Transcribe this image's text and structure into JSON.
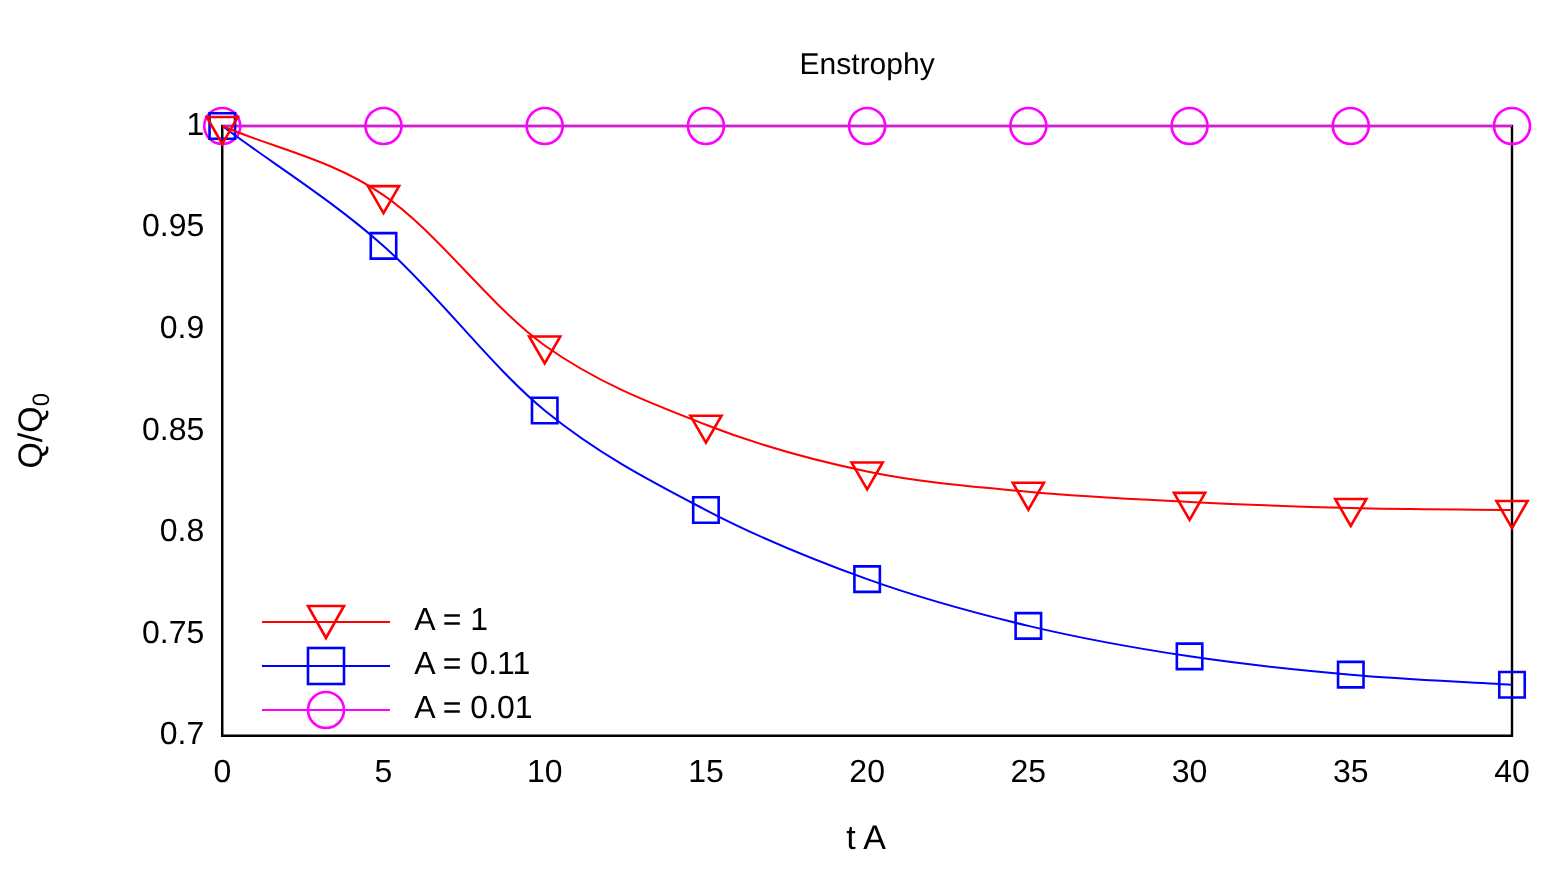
{
  "chart_data": {
    "type": "line",
    "title": "Enstrophy",
    "xlabel": "t A",
    "ylabel": "Q/Q$_{0}$",
    "x": [
      0,
      5,
      10,
      15,
      20,
      25,
      30,
      35,
      40
    ],
    "series": [
      {
        "name": "A = 1",
        "color": "#ff0000",
        "marker": "triangle",
        "values": [
          1,
          0.966,
          0.892,
          0.853,
          0.83,
          0.82,
          0.815,
          0.812,
          0.811
        ]
      },
      {
        "name": "A = 0.11",
        "color": "#0000ff",
        "marker": "square",
        "values": [
          1,
          0.941,
          0.86,
          0.811,
          0.777,
          0.754,
          0.739,
          0.73,
          0.725
        ]
      },
      {
        "name": "A = 0.01",
        "color": "#ff00ff",
        "marker": "circle",
        "values": [
          1,
          1,
          1,
          1,
          1,
          1,
          1,
          1,
          1
        ]
      }
    ],
    "xlim": [
      0,
      40
    ],
    "xticks": [
      0,
      5,
      10,
      15,
      20,
      25,
      30,
      35,
      40
    ],
    "ylim": [
      0.7,
      1
    ],
    "yticks": [
      0.7,
      0.75,
      0.8,
      0.85,
      0.9,
      0.95,
      1
    ],
    "grid": false,
    "legend": "bottom left",
    "line_style": "solid"
  }
}
